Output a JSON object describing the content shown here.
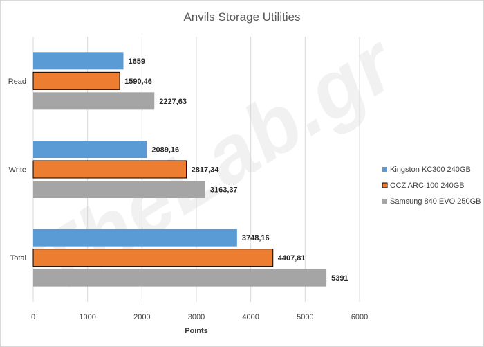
{
  "chart_data": {
    "type": "bar",
    "orientation": "horizontal",
    "title": "Anvils Storage Utilities",
    "xlabel": "Points",
    "ylabel": "",
    "xlim": [
      0,
      6000
    ],
    "xticks": [
      0,
      1000,
      2000,
      3000,
      4000,
      5000,
      6000
    ],
    "grid": true,
    "legend_position": "right",
    "categories": [
      "Read",
      "Write",
      "Total"
    ],
    "series": [
      {
        "name": "Kingston KC300 240GB",
        "color": "#5b9bd5",
        "values": [
          1659,
          2089.16,
          3748.16
        ],
        "labels": [
          "1659",
          "2089,16",
          "3748,16"
        ]
      },
      {
        "name": "OCZ ARC 100 240GB",
        "color": "#ed7d31",
        "values": [
          1590.46,
          2817.34,
          4407.81
        ],
        "labels": [
          "1590,46",
          "2817,34",
          "4407,81"
        ]
      },
      {
        "name": "Samsung 840 EVO 250GB",
        "color": "#a5a5a5",
        "values": [
          2227.63,
          3163.37,
          5391
        ],
        "labels": [
          "2227,63",
          "3163,37",
          "5391"
        ]
      }
    ]
  },
  "watermark": "TheLab.gr"
}
